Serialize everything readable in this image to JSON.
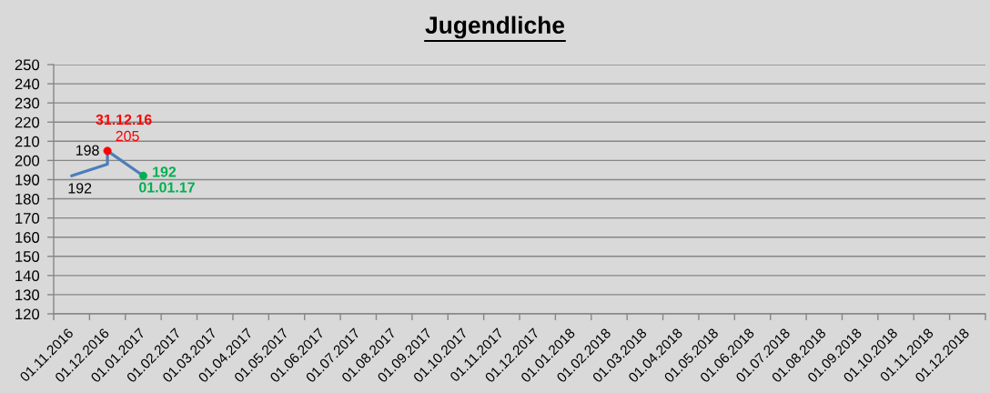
{
  "chart_data": {
    "type": "line",
    "title": "Jugendliche",
    "categories": [
      "01.11.2016",
      "01.12.2016",
      "01.01.2017",
      "01.02.2017",
      "01.03.2017",
      "01.04.2017",
      "01.05.2017",
      "01.06.2017",
      "01.07.2017",
      "01.08.2017",
      "01.09.2017",
      "01.10.2017",
      "01.11.2017",
      "01.12.2017",
      "01.01.2018",
      "01.02.2018",
      "01.03.2018",
      "01.04.2018",
      "01.05.2018",
      "01.06.2018",
      "01.07.2018",
      "01.08.2018",
      "01.09.2018",
      "01.10.2018",
      "01.11.2018",
      "01.12.2018"
    ],
    "ylim": [
      120,
      250
    ],
    "yticks": [
      120,
      130,
      140,
      150,
      160,
      170,
      180,
      190,
      200,
      210,
      220,
      230,
      240,
      250
    ],
    "grid": "y",
    "series": [
      {
        "color": "#4a7ebb",
        "x": [
          "01.11.2016",
          "01.12.2016",
          "01.12.2016",
          "01.01.2017"
        ],
        "values": [
          192,
          198,
          205,
          192
        ],
        "value_labels": [
          "192",
          "198",
          null,
          null
        ]
      },
      {
        "type": "scatter",
        "color": "#ff0000",
        "marker": "circle",
        "x": [
          "01.12.2016"
        ],
        "values": [
          205
        ],
        "value_labels": [
          "205"
        ]
      },
      {
        "type": "scatter",
        "color": "#00b050",
        "marker": "circle",
        "x": [
          "01.01.2017"
        ],
        "values": [
          192
        ],
        "value_labels": [
          "192"
        ]
      }
    ],
    "annotations": [
      {
        "text": "31.12.16",
        "x": "01.12.2016",
        "y": 205
      },
      {
        "text": "01.01.17",
        "x": "01.01.2017",
        "y": 192
      }
    ]
  }
}
